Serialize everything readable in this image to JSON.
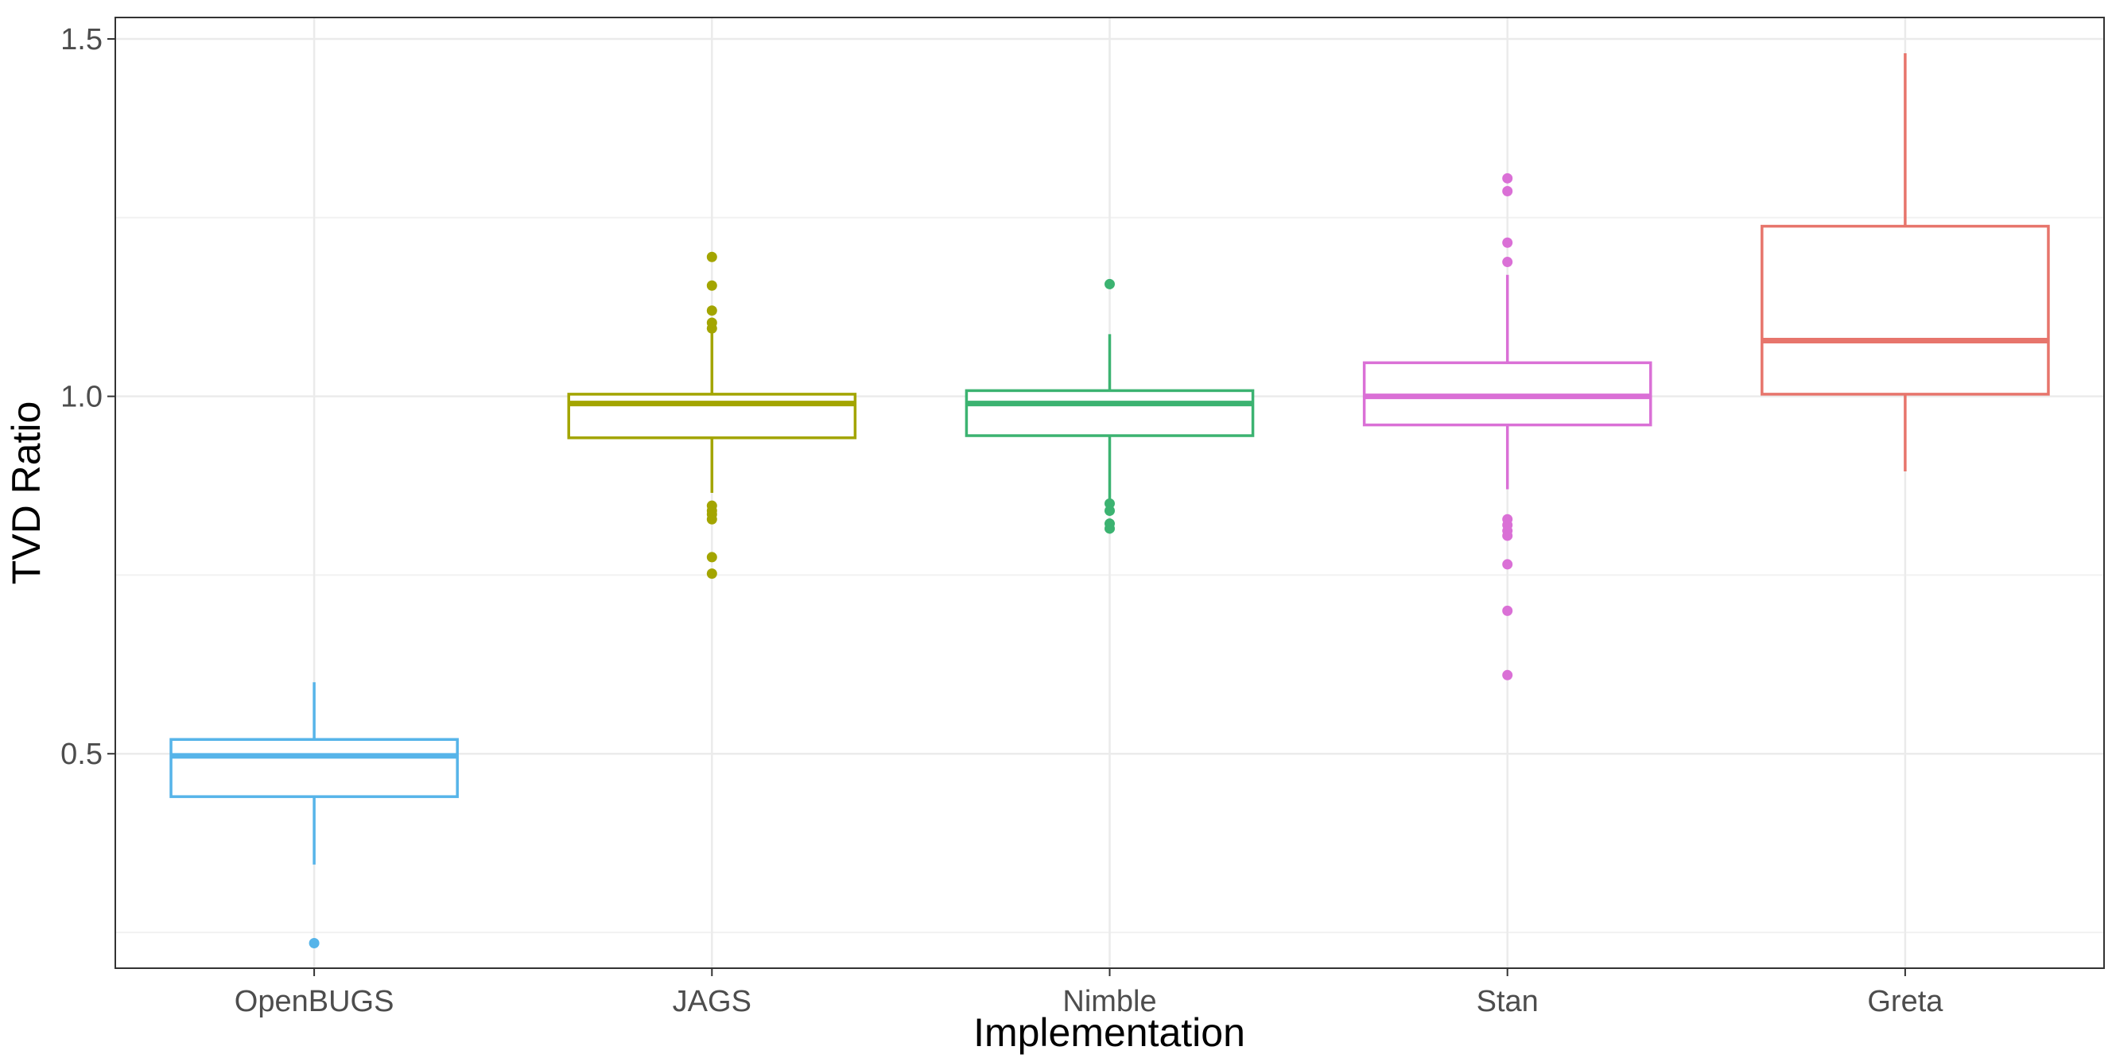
{
  "chart_data": {
    "type": "boxplot",
    "title": "",
    "xlabel": "Implementation",
    "ylabel": "TVD Ratio",
    "ylim": [
      0.2,
      1.53
    ],
    "yticks": [
      0.5,
      1.0,
      1.5
    ],
    "ytick_labels": [
      "0.5",
      "1.0",
      "1.5"
    ],
    "grid": true,
    "legend": "none",
    "categories": [
      "OpenBUGS",
      "JAGS",
      "Nimble",
      "Stan",
      "Greta"
    ],
    "series": [
      {
        "category": "OpenBUGS",
        "color": "#56B4E9",
        "whisker_low": 0.345,
        "q1": 0.44,
        "median": 0.497,
        "q3": 0.52,
        "whisker_high": 0.6,
        "outliers": [
          0.235
        ]
      },
      {
        "category": "JAGS",
        "color": "#A3A500",
        "whisker_low": 0.865,
        "q1": 0.942,
        "median": 0.99,
        "q3": 1.003,
        "whisker_high": 1.1,
        "outliers": [
          0.752,
          0.775,
          0.828,
          0.835,
          0.84,
          0.847,
          1.095,
          1.103,
          1.12,
          1.155,
          1.195
        ]
      },
      {
        "category": "Nimble",
        "color": "#3CB371",
        "whisker_low": 0.855,
        "q1": 0.945,
        "median": 0.99,
        "q3": 1.008,
        "whisker_high": 1.087,
        "outliers": [
          0.815,
          0.822,
          0.84,
          0.85,
          1.157
        ]
      },
      {
        "category": "Stan",
        "color": "#DA70D6",
        "whisker_low": 0.87,
        "q1": 0.96,
        "median": 1.0,
        "q3": 1.047,
        "whisker_high": 1.17,
        "outliers": [
          0.61,
          0.7,
          0.765,
          0.805,
          0.812,
          0.82,
          0.828,
          1.188,
          1.215,
          1.287,
          1.305
        ]
      },
      {
        "category": "Greta",
        "color": "#E7756C",
        "whisker_low": 0.895,
        "q1": 1.003,
        "median": 1.078,
        "q3": 1.238,
        "whisker_high": 1.48,
        "outliers": []
      }
    ]
  }
}
